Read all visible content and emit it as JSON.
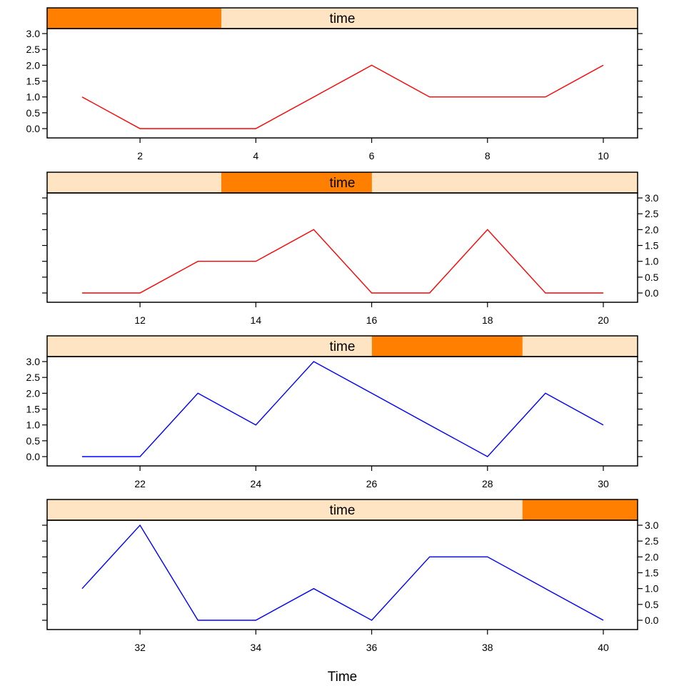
{
  "chart_data": {
    "type": "line",
    "xlabel": "Time",
    "strip_label": "time",
    "colors": {
      "strip_bg": "#ffe4c4",
      "strip_range": "#ff7f00",
      "series_red": "#ff0000",
      "series_blue": "#0000ff"
    },
    "ylim": [
      0,
      3
    ],
    "y_ticks": [
      "0.0",
      "0.5",
      "1.0",
      "1.5",
      "2.0",
      "2.5",
      "3.0"
    ],
    "panels": [
      {
        "range": [
          1,
          10
        ],
        "shingle_range": [
          0,
          2.95
        ],
        "x_ticks": [
          "2",
          "4",
          "6",
          "8",
          "10"
        ],
        "y_tick_labels_side": "left",
        "color": "#ff0000",
        "x": [
          1,
          2,
          3,
          4,
          5,
          6,
          7,
          8,
          9,
          10
        ],
        "y": [
          1,
          0,
          0,
          0,
          1,
          2,
          1,
          1,
          1,
          2
        ]
      },
      {
        "range": [
          11,
          20
        ],
        "shingle_range": [
          2.95,
          5.5
        ],
        "x_ticks": [
          "12",
          "14",
          "16",
          "18",
          "20"
        ],
        "y_tick_labels_side": "right",
        "color": "#ff0000",
        "x": [
          11,
          12,
          13,
          14,
          15,
          16,
          17,
          18,
          19,
          20
        ],
        "y": [
          0,
          0,
          1,
          1,
          2,
          0,
          0,
          2,
          0,
          0
        ]
      },
      {
        "range": [
          21,
          30
        ],
        "shingle_range": [
          5.5,
          8.05
        ],
        "x_ticks": [
          "22",
          "24",
          "26",
          "28",
          "30"
        ],
        "y_tick_labels_side": "left",
        "color": "#0000ff",
        "x": [
          21,
          22,
          23,
          24,
          25,
          26,
          27,
          28,
          29,
          30
        ],
        "y": [
          0,
          0,
          2,
          1,
          3,
          2,
          1,
          0,
          2,
          1
        ]
      },
      {
        "range": [
          31,
          40
        ],
        "shingle_range": [
          8.05,
          10
        ],
        "x_ticks": [
          "32",
          "34",
          "36",
          "38",
          "40"
        ],
        "y_tick_labels_side": "right",
        "color": "#0000ff",
        "x": [
          31,
          32,
          33,
          34,
          35,
          36,
          37,
          38,
          39,
          40
        ],
        "y": [
          1,
          3,
          0,
          0,
          1,
          0,
          2,
          2,
          1,
          0
        ]
      }
    ]
  }
}
